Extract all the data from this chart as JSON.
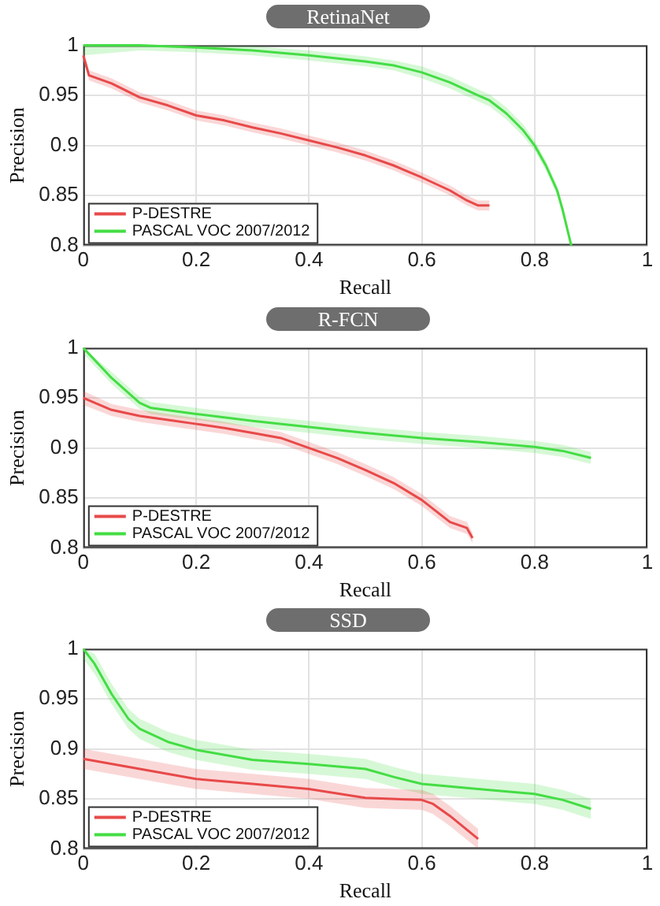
{
  "chart_data": [
    {
      "type": "line",
      "title": "RetinaNet",
      "xlabel": "Recall",
      "ylabel": "Precision",
      "xlim": [
        0,
        1
      ],
      "ylim": [
        0.8,
        1
      ],
      "xticks": [
        0,
        0.2,
        0.4,
        0.6,
        0.8,
        1
      ],
      "yticks": [
        0.8,
        0.85,
        0.9,
        0.95,
        1
      ],
      "grid": true,
      "legend": "bottom left",
      "marker": "none",
      "series": [
        {
          "name": "P-DESTRE",
          "color": "#e84a4a",
          "x": [
            0,
            0.01,
            0.05,
            0.1,
            0.15,
            0.2,
            0.25,
            0.3,
            0.35,
            0.4,
            0.45,
            0.5,
            0.55,
            0.6,
            0.65,
            0.68,
            0.7,
            0.72
          ],
          "values": [
            0.99,
            0.97,
            0.962,
            0.948,
            0.94,
            0.93,
            0.925,
            0.918,
            0.912,
            0.905,
            0.898,
            0.89,
            0.88,
            0.868,
            0.855,
            0.845,
            0.84,
            0.84
          ],
          "lower": [
            0.985,
            0.965,
            0.957,
            0.943,
            0.935,
            0.925,
            0.92,
            0.913,
            0.907,
            0.9,
            0.893,
            0.885,
            0.875,
            0.863,
            0.85,
            0.84,
            0.835,
            0.835
          ],
          "upper": [
            0.995,
            0.975,
            0.967,
            0.953,
            0.945,
            0.935,
            0.93,
            0.923,
            0.917,
            0.91,
            0.903,
            0.895,
            0.885,
            0.873,
            0.86,
            0.85,
            0.845,
            0.845
          ]
        },
        {
          "name": "PASCAL VOC 2007/2012",
          "color": "#44dd44",
          "x": [
            0,
            0.1,
            0.2,
            0.3,
            0.4,
            0.5,
            0.55,
            0.6,
            0.65,
            0.7,
            0.72,
            0.75,
            0.78,
            0.8,
            0.82,
            0.84,
            0.85,
            0.865
          ],
          "values": [
            1,
            1,
            0.998,
            0.995,
            0.99,
            0.984,
            0.98,
            0.973,
            0.963,
            0.95,
            0.945,
            0.932,
            0.915,
            0.9,
            0.88,
            0.855,
            0.835,
            0.8
          ],
          "lower": [
            0.99,
            0.995,
            0.993,
            0.99,
            0.985,
            0.979,
            0.975,
            0.967,
            0.957,
            0.944,
            0.939,
            0.926,
            0.909,
            0.895,
            0.875,
            0.85,
            0.83,
            0.8
          ],
          "upper": [
            1,
            1,
            1,
            0.999,
            0.995,
            0.989,
            0.985,
            0.979,
            0.969,
            0.956,
            0.951,
            0.938,
            0.921,
            0.905,
            0.885,
            0.86,
            0.84,
            0.8
          ]
        }
      ]
    },
    {
      "type": "line",
      "title": "R-FCN",
      "xlabel": "Recall",
      "ylabel": "Precision",
      "xlim": [
        0,
        1
      ],
      "ylim": [
        0.8,
        1
      ],
      "xticks": [
        0,
        0.2,
        0.4,
        0.6,
        0.8,
        1
      ],
      "yticks": [
        0.8,
        0.85,
        0.9,
        0.95,
        1
      ],
      "grid": true,
      "legend": "bottom left",
      "marker": "none",
      "series": [
        {
          "name": "P-DESTRE",
          "color": "#e84a4a",
          "x": [
            0,
            0.05,
            0.1,
            0.15,
            0.2,
            0.25,
            0.3,
            0.35,
            0.4,
            0.45,
            0.5,
            0.55,
            0.6,
            0.65,
            0.68,
            0.69
          ],
          "values": [
            0.95,
            0.938,
            0.932,
            0.928,
            0.924,
            0.92,
            0.915,
            0.91,
            0.9,
            0.89,
            0.878,
            0.865,
            0.848,
            0.826,
            0.82,
            0.81
          ],
          "lower": [
            0.943,
            0.932,
            0.926,
            0.922,
            0.918,
            0.914,
            0.909,
            0.904,
            0.894,
            0.884,
            0.872,
            0.859,
            0.842,
            0.82,
            0.814,
            0.805
          ],
          "upper": [
            0.957,
            0.944,
            0.938,
            0.934,
            0.93,
            0.926,
            0.921,
            0.916,
            0.906,
            0.896,
            0.884,
            0.871,
            0.854,
            0.832,
            0.826,
            0.815
          ]
        },
        {
          "name": "PASCAL VOC 2007/2012",
          "color": "#44dd44",
          "x": [
            0,
            0.05,
            0.1,
            0.12,
            0.2,
            0.3,
            0.4,
            0.5,
            0.6,
            0.7,
            0.8,
            0.85,
            0.9
          ],
          "values": [
            1,
            0.97,
            0.945,
            0.94,
            0.934,
            0.927,
            0.921,
            0.915,
            0.91,
            0.906,
            0.901,
            0.897,
            0.89
          ],
          "lower": [
            0.994,
            0.964,
            0.939,
            0.934,
            0.928,
            0.921,
            0.915,
            0.909,
            0.904,
            0.9,
            0.895,
            0.891,
            0.884
          ],
          "upper": [
            1,
            0.976,
            0.951,
            0.946,
            0.94,
            0.933,
            0.927,
            0.921,
            0.916,
            0.912,
            0.907,
            0.903,
            0.896
          ]
        }
      ]
    },
    {
      "type": "line",
      "title": "SSD",
      "xlabel": "Recall",
      "ylabel": "Precision",
      "xlim": [
        0,
        1
      ],
      "ylim": [
        0.8,
        1
      ],
      "xticks": [
        0,
        0.2,
        0.4,
        0.6,
        0.8,
        1
      ],
      "yticks": [
        0.8,
        0.85,
        0.9,
        0.95,
        1
      ],
      "grid": true,
      "legend": "bottom left",
      "marker": "none",
      "series": [
        {
          "name": "P-DESTRE",
          "color": "#e84a4a",
          "x": [
            0,
            0.1,
            0.2,
            0.3,
            0.4,
            0.5,
            0.6,
            0.62,
            0.65,
            0.7
          ],
          "values": [
            0.89,
            0.88,
            0.87,
            0.865,
            0.86,
            0.851,
            0.849,
            0.845,
            0.833,
            0.81
          ],
          "lower": [
            0.88,
            0.87,
            0.86,
            0.855,
            0.85,
            0.841,
            0.839,
            0.835,
            0.823,
            0.8
          ],
          "upper": [
            0.9,
            0.89,
            0.88,
            0.875,
            0.87,
            0.861,
            0.859,
            0.855,
            0.843,
            0.82
          ]
        },
        {
          "name": "PASCAL VOC 2007/2012",
          "color": "#44dd44",
          "x": [
            0,
            0.02,
            0.05,
            0.08,
            0.1,
            0.15,
            0.2,
            0.3,
            0.4,
            0.5,
            0.55,
            0.6,
            0.7,
            0.8,
            0.85,
            0.9
          ],
          "values": [
            1,
            0.985,
            0.955,
            0.93,
            0.92,
            0.907,
            0.899,
            0.889,
            0.885,
            0.88,
            0.872,
            0.865,
            0.86,
            0.855,
            0.849,
            0.84
          ],
          "lower": [
            0.99,
            0.975,
            0.945,
            0.92,
            0.91,
            0.897,
            0.889,
            0.879,
            0.875,
            0.87,
            0.862,
            0.855,
            0.85,
            0.845,
            0.839,
            0.83
          ],
          "upper": [
            1,
            0.995,
            0.965,
            0.94,
            0.93,
            0.917,
            0.909,
            0.899,
            0.895,
            0.89,
            0.882,
            0.875,
            0.87,
            0.865,
            0.859,
            0.85
          ]
        }
      ]
    }
  ]
}
